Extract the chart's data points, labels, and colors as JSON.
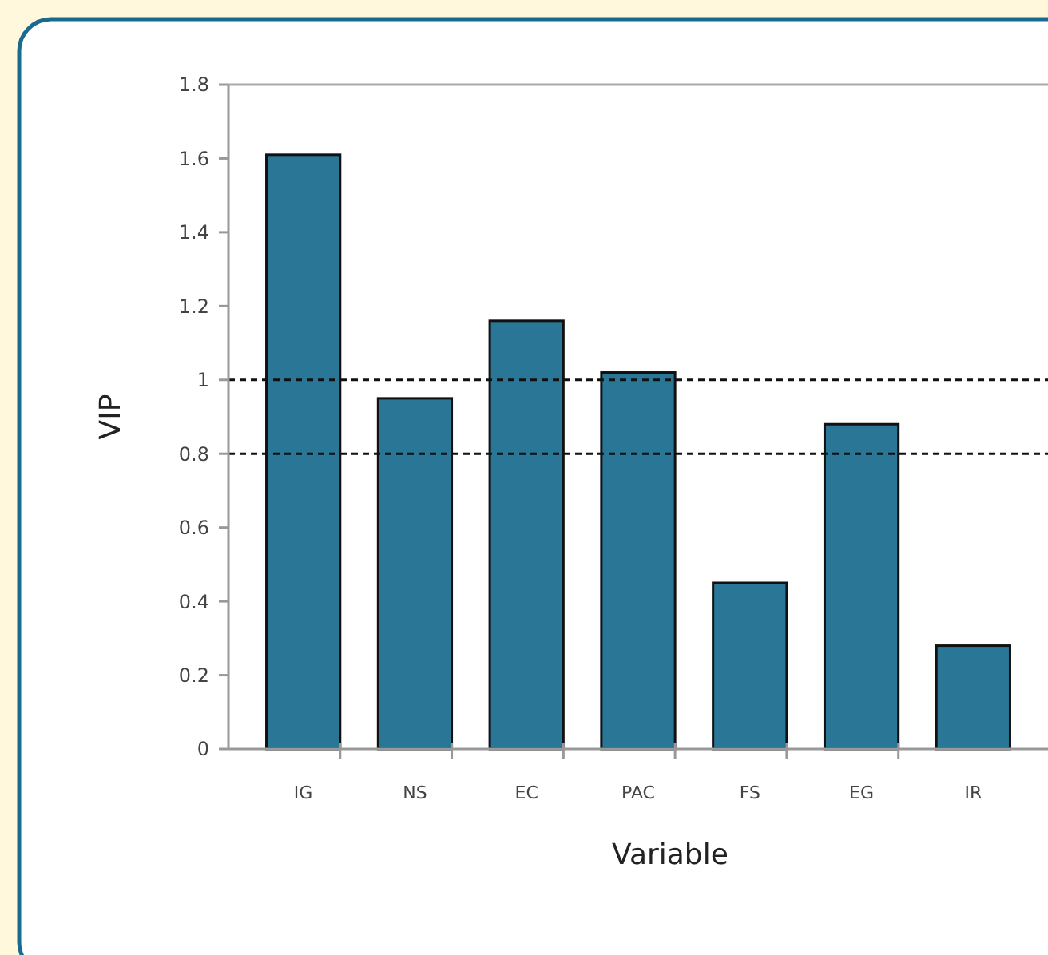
{
  "chart_data": {
    "type": "bar",
    "xlabel": "Variable",
    "ylabel": "VIP",
    "categories": [
      "IG",
      "NS",
      "EC",
      "PAC",
      "FS",
      "EG",
      "IR"
    ],
    "values": [
      1.61,
      0.95,
      1.16,
      1.02,
      0.45,
      0.88,
      0.28
    ],
    "color": "#2a7696",
    "ylim": [
      0,
      1.8
    ],
    "yticks": [
      0,
      0.2,
      0.4,
      0.6,
      0.8,
      1,
      1.2,
      1.4,
      1.6,
      1.8
    ],
    "grid": false,
    "ref_lines": [
      {
        "axis": "y",
        "value": 1,
        "color": "#111111",
        "line_style": "dashed"
      },
      {
        "axis": "y",
        "value": 0.8,
        "color": "#111111",
        "line_style": "dashed"
      }
    ]
  }
}
